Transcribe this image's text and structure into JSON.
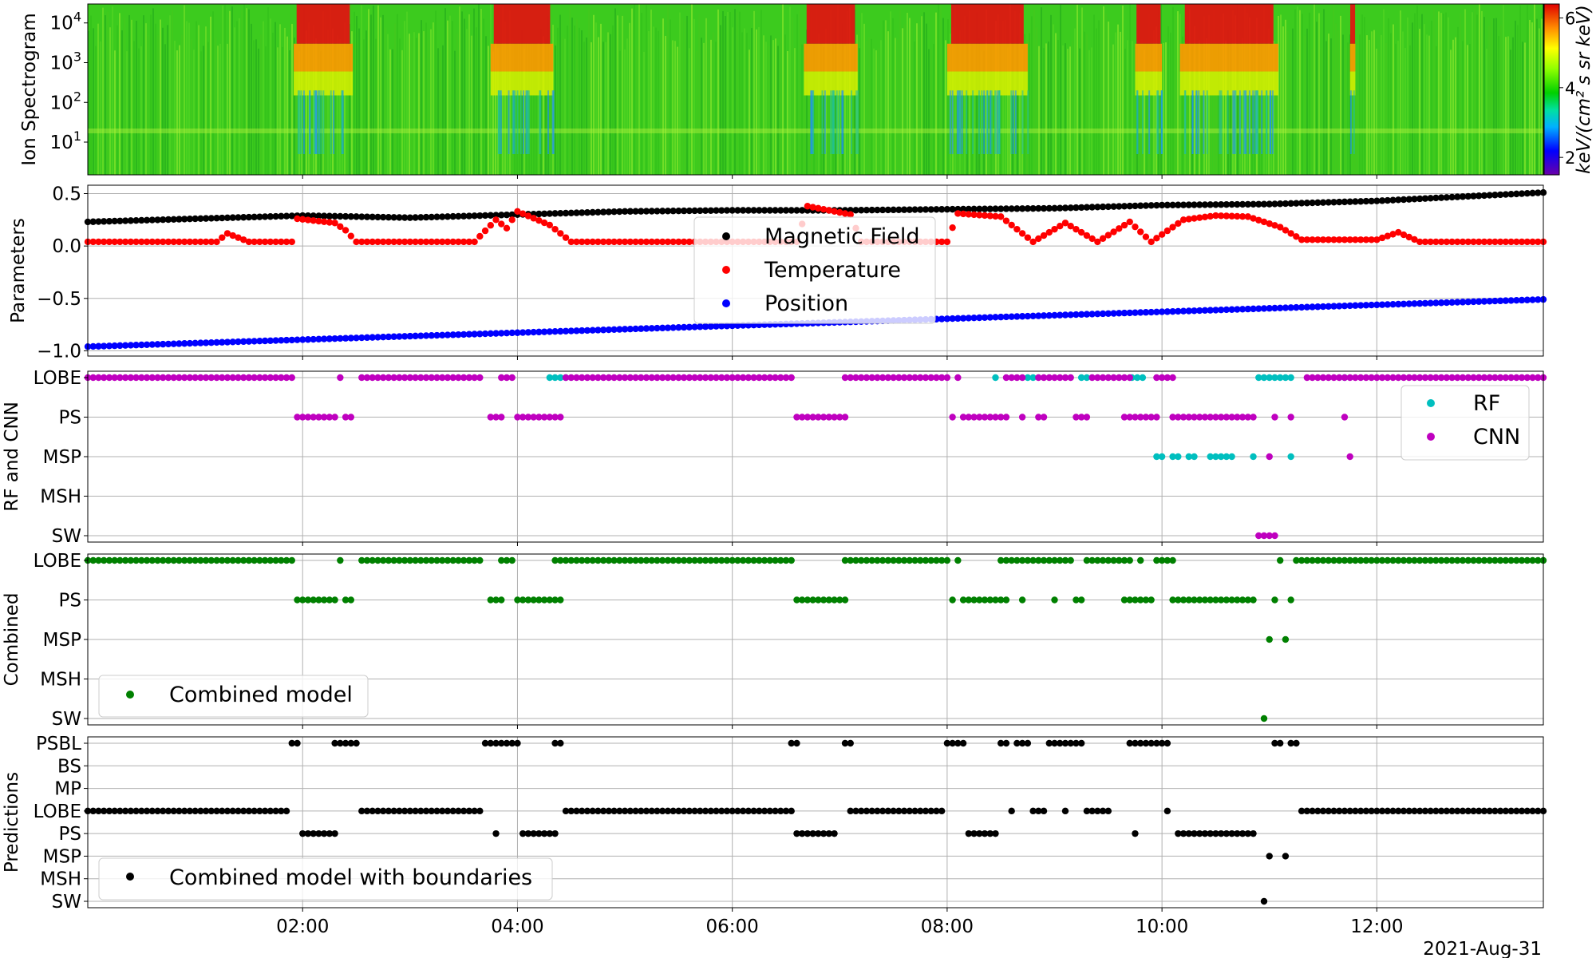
{
  "date_label": "2021-Aug-31",
  "x_ticks": [
    "02:00",
    "04:00",
    "06:00",
    "08:00",
    "10:00",
    "12:00"
  ],
  "chart_data": [
    {
      "type": "heatmap",
      "ylabel": "Ion Spectrogram",
      "y_scale": "log",
      "y_tick_exponents": [
        "1",
        "2",
        "3",
        "4"
      ],
      "ylim": [
        1.5,
        30000
      ],
      "colorbar": {
        "label": "keV/(cm² s sr keV)",
        "ticks": [
          "2",
          "4",
          "6"
        ],
        "range": [
          1.5,
          6.4
        ]
      },
      "high_flux_intervals": [
        [
          "01:55",
          "02:28"
        ],
        [
          "03:45",
          "04:20"
        ],
        [
          "06:40",
          "07:10"
        ],
        [
          "08:00",
          "08:45"
        ],
        [
          "09:45",
          "10:00"
        ],
        [
          "10:10",
          "11:05"
        ],
        [
          "11:45",
          "11:48"
        ]
      ]
    },
    {
      "type": "scatter",
      "ylabel": "Parameters",
      "y_ticks": [
        "0.5",
        "0.0",
        "−0.5",
        "−1.0"
      ],
      "ylim": [
        -1.05,
        0.58
      ],
      "legend_position": "center",
      "series": [
        {
          "name": "Magnetic Field",
          "color": "#000000",
          "points": [
            [
              0.0,
              0.23
            ],
            [
              2.0,
              0.29
            ],
            [
              3.0,
              0.27
            ],
            [
              4.0,
              0.3
            ],
            [
              5.0,
              0.33
            ],
            [
              6.0,
              0.34
            ],
            [
              7.0,
              0.34
            ],
            [
              8.0,
              0.35
            ],
            [
              9.0,
              0.36
            ],
            [
              10.0,
              0.39
            ],
            [
              11.0,
              0.4
            ],
            [
              12.0,
              0.43
            ],
            [
              13.55,
              0.51
            ]
          ]
        },
        {
          "name": "Temperature",
          "color": "#ff0000",
          "points": [
            [
              0.0,
              0.04
            ],
            [
              1.2,
              0.04
            ],
            [
              1.3,
              0.12
            ],
            [
              1.5,
              0.04
            ],
            [
              1.9,
              0.04
            ],
            [
              1.95,
              0.26
            ],
            [
              2.3,
              0.22
            ],
            [
              2.4,
              0.15
            ],
            [
              2.5,
              0.04
            ],
            [
              3.6,
              0.04
            ],
            [
              3.8,
              0.25
            ],
            [
              3.9,
              0.17
            ],
            [
              4.0,
              0.33
            ],
            [
              4.3,
              0.2
            ],
            [
              4.5,
              0.04
            ],
            [
              6.6,
              0.04
            ],
            [
              6.7,
              0.38
            ],
            [
              7.1,
              0.3
            ],
            [
              7.2,
              0.04
            ],
            [
              8.0,
              0.04
            ],
            [
              8.1,
              0.31
            ],
            [
              8.5,
              0.28
            ],
            [
              8.8,
              0.04
            ],
            [
              9.1,
              0.22
            ],
            [
              9.4,
              0.04
            ],
            [
              9.7,
              0.23
            ],
            [
              9.9,
              0.04
            ],
            [
              10.2,
              0.25
            ],
            [
              10.5,
              0.29
            ],
            [
              10.8,
              0.28
            ],
            [
              11.1,
              0.18
            ],
            [
              11.3,
              0.06
            ],
            [
              12.0,
              0.06
            ],
            [
              12.2,
              0.13
            ],
            [
              12.4,
              0.04
            ],
            [
              13.55,
              0.04
            ]
          ]
        },
        {
          "name": "Position",
          "color": "#0000ff",
          "points": [
            [
              0.0,
              -0.96
            ],
            [
              13.55,
              -0.51
            ]
          ]
        }
      ]
    },
    {
      "type": "scatter",
      "ylabel": "RF and CNN",
      "categories": [
        "LOBE",
        "PS",
        "MSP",
        "MSH",
        "SW"
      ],
      "legend_position": "right",
      "series": [
        {
          "name": "RF",
          "color": "#00bfbf",
          "segments": [
            [
              "LOBE",
              4.3,
              4.45
            ],
            [
              "LOBE",
              8.45,
              8.47
            ],
            [
              "LOBE",
              8.75,
              8.82
            ],
            [
              "LOBE",
              9.25,
              9.32
            ],
            [
              "LOBE",
              9.72,
              9.85
            ],
            [
              "LOBE",
              10.9,
              11.2
            ],
            [
              "LOBE",
              11.7,
              11.72
            ],
            [
              "MSP",
              9.95,
              10.0
            ],
            [
              "MSP",
              10.1,
              10.15
            ],
            [
              "MSP",
              10.25,
              10.3
            ],
            [
              "MSP",
              10.45,
              10.65
            ],
            [
              "MSP",
              10.85,
              10.88
            ],
            [
              "MSP",
              11.2,
              11.22
            ]
          ]
        },
        {
          "name": "CNN",
          "color": "#bf00bf",
          "segments": [
            [
              "LOBE",
              0.0,
              1.9
            ],
            [
              "LOBE",
              2.35,
              2.37
            ],
            [
              "LOBE",
              2.55,
              3.65
            ],
            [
              "LOBE",
              3.85,
              3.95
            ],
            [
              "LOBE",
              4.45,
              6.55
            ],
            [
              "LOBE",
              7.05,
              8.0
            ],
            [
              "LOBE",
              8.1,
              8.12
            ],
            [
              "LOBE",
              8.55,
              8.7
            ],
            [
              "LOBE",
              8.85,
              9.15
            ],
            [
              "LOBE",
              9.35,
              9.7
            ],
            [
              "LOBE",
              9.95,
              10.1
            ],
            [
              "LOBE",
              11.35,
              13.55
            ],
            [
              "PS",
              1.95,
              2.3
            ],
            [
              "PS",
              2.4,
              2.47
            ],
            [
              "PS",
              3.75,
              3.85
            ],
            [
              "PS",
              4.0,
              4.4
            ],
            [
              "PS",
              6.6,
              7.05
            ],
            [
              "PS",
              8.05,
              8.07
            ],
            [
              "PS",
              8.15,
              8.55
            ],
            [
              "PS",
              8.7,
              8.72
            ],
            [
              "PS",
              8.85,
              8.9
            ],
            [
              "PS",
              9.2,
              9.3
            ],
            [
              "PS",
              9.65,
              9.95
            ],
            [
              "PS",
              10.1,
              10.85
            ],
            [
              "PS",
              11.05,
              11.07
            ],
            [
              "PS",
              11.2,
              11.22
            ],
            [
              "PS",
              11.7,
              11.72
            ],
            [
              "MSP",
              11.0,
              11.02
            ],
            [
              "MSP",
              11.75,
              11.77
            ],
            [
              "SW",
              10.9,
              11.08
            ]
          ]
        }
      ]
    },
    {
      "type": "scatter",
      "ylabel": "Combined",
      "categories": [
        "LOBE",
        "PS",
        "MSP",
        "MSH",
        "SW"
      ],
      "legend_position": "lower-left",
      "series": [
        {
          "name": "Combined model",
          "color": "#008000",
          "segments": [
            [
              "LOBE",
              0.0,
              1.9
            ],
            [
              "LOBE",
              2.35,
              2.37
            ],
            [
              "LOBE",
              2.55,
              3.65
            ],
            [
              "LOBE",
              3.85,
              3.95
            ],
            [
              "LOBE",
              4.35,
              6.55
            ],
            [
              "LOBE",
              7.05,
              8.0
            ],
            [
              "LOBE",
              8.1,
              8.12
            ],
            [
              "LOBE",
              8.5,
              8.7
            ],
            [
              "LOBE",
              8.75,
              9.0
            ],
            [
              "LOBE",
              9.05,
              9.15
            ],
            [
              "LOBE",
              9.3,
              9.7
            ],
            [
              "LOBE",
              9.8,
              9.82
            ],
            [
              "LOBE",
              9.95,
              10.1
            ],
            [
              "LOBE",
              11.1,
              11.12
            ],
            [
              "LOBE",
              11.25,
              13.55
            ],
            [
              "PS",
              1.95,
              2.3
            ],
            [
              "PS",
              2.4,
              2.47
            ],
            [
              "PS",
              3.75,
              3.85
            ],
            [
              "PS",
              4.0,
              4.4
            ],
            [
              "PS",
              6.6,
              7.05
            ],
            [
              "PS",
              8.05,
              8.07
            ],
            [
              "PS",
              8.15,
              8.55
            ],
            [
              "PS",
              8.7,
              8.72
            ],
            [
              "PS",
              9.0,
              9.02
            ],
            [
              "PS",
              9.2,
              9.25
            ],
            [
              "PS",
              9.65,
              9.8
            ],
            [
              "PS",
              9.85,
              9.9
            ],
            [
              "PS",
              10.1,
              10.85
            ],
            [
              "PS",
              11.05,
              11.07
            ],
            [
              "PS",
              11.2,
              11.22
            ],
            [
              "MSP",
              11.0,
              11.02
            ],
            [
              "MSP",
              11.15,
              11.17
            ],
            [
              "SW",
              10.95,
              10.97
            ]
          ]
        }
      ]
    },
    {
      "type": "scatter",
      "ylabel": "Predictions",
      "categories": [
        "PSBL",
        "BS",
        "MP",
        "LOBE",
        "PS",
        "MSP",
        "MSH",
        "SW"
      ],
      "legend_position": "lower-left",
      "series": [
        {
          "name": "Combined model with boundaries",
          "color": "#000000",
          "segments": [
            [
              "PSBL",
              1.9,
              1.97
            ],
            [
              "PSBL",
              2.3,
              2.5
            ],
            [
              "PSBL",
              3.7,
              3.8
            ],
            [
              "PSBL",
              3.85,
              4.0
            ],
            [
              "PSBL",
              4.35,
              4.42
            ],
            [
              "PSBL",
              6.55,
              6.62
            ],
            [
              "PSBL",
              7.05,
              7.12
            ],
            [
              "PSBL",
              8.0,
              8.15
            ],
            [
              "PSBL",
              8.5,
              8.57
            ],
            [
              "PSBL",
              8.65,
              8.78
            ],
            [
              "PSBL",
              8.95,
              9.05
            ],
            [
              "PSBL",
              9.1,
              9.28
            ],
            [
              "PSBL",
              9.7,
              9.9
            ],
            [
              "PSBL",
              9.95,
              10.05
            ],
            [
              "PSBL",
              11.05,
              11.12
            ],
            [
              "PSBL",
              11.2,
              11.25
            ],
            [
              "LOBE",
              0.0,
              1.85
            ],
            [
              "LOBE",
              2.55,
              3.65
            ],
            [
              "LOBE",
              4.45,
              6.55
            ],
            [
              "LOBE",
              7.1,
              7.95
            ],
            [
              "LOBE",
              8.6,
              8.62
            ],
            [
              "LOBE",
              8.8,
              8.9
            ],
            [
              "LOBE",
              9.1,
              9.12
            ],
            [
              "LOBE",
              9.3,
              9.5
            ],
            [
              "LOBE",
              10.05,
              10.07
            ],
            [
              "LOBE",
              11.3,
              13.55
            ],
            [
              "PS",
              2.0,
              2.3
            ],
            [
              "PS",
              3.8,
              3.82
            ],
            [
              "PS",
              4.05,
              4.35
            ],
            [
              "PS",
              6.6,
              6.95
            ],
            [
              "PS",
              8.2,
              8.45
            ],
            [
              "PS",
              9.75,
              9.77
            ],
            [
              "PS",
              10.15,
              10.85
            ],
            [
              "MSP",
              11.0,
              11.02
            ],
            [
              "MSP",
              11.15,
              11.17
            ],
            [
              "SW",
              10.95,
              10.97
            ]
          ]
        }
      ]
    }
  ]
}
